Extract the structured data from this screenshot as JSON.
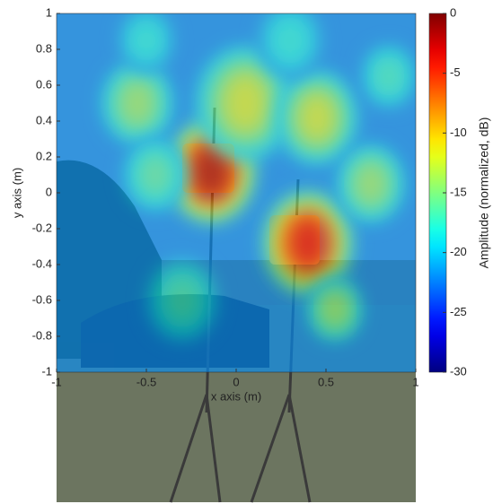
{
  "chart_data": {
    "type": "heatmap",
    "x_label": "x axis (m)",
    "y_label": "y axis (m)",
    "colorbar_label": "Amplitude (normalized, dB)",
    "colormap": "jet",
    "xlim": [
      -1,
      1
    ],
    "ylim": [
      -1,
      1
    ],
    "xticks": [
      -1,
      -0.5,
      0,
      0.5,
      1
    ],
    "yticks": [
      1,
      0.8,
      0.6,
      0.4,
      0.2,
      0,
      -0.2,
      -0.4,
      -0.6,
      -0.8,
      -1
    ],
    "clim": [
      -30,
      0
    ],
    "cticks": [
      0,
      -5,
      -10,
      -15,
      -20,
      -25,
      -30
    ],
    "background_amplitude": -22,
    "hotspots": [
      {
        "x": -0.14,
        "y": 0.12,
        "amplitude": -1,
        "radius": 0.2
      },
      {
        "x": 0.4,
        "y": -0.28,
        "amplitude": -3,
        "radius": 0.2
      },
      {
        "x": 0.05,
        "y": 0.5,
        "amplitude": -12,
        "radius": 0.22
      },
      {
        "x": 0.45,
        "y": 0.42,
        "amplitude": -12,
        "radius": 0.18
      },
      {
        "x": -0.55,
        "y": 0.5,
        "amplitude": -14,
        "radius": 0.16
      },
      {
        "x": -0.45,
        "y": 0.1,
        "amplitude": -16,
        "radius": 0.14
      },
      {
        "x": 0.75,
        "y": 0.05,
        "amplitude": -14,
        "radius": 0.15
      },
      {
        "x": 0.55,
        "y": -0.65,
        "amplitude": -14,
        "radius": 0.12
      },
      {
        "x": -0.3,
        "y": -0.6,
        "amplitude": -17,
        "radius": 0.16
      },
      {
        "x": -0.5,
        "y": 0.85,
        "amplitude": -18,
        "radius": 0.12
      },
      {
        "x": 0.3,
        "y": 0.85,
        "amplitude": -18,
        "radius": 0.14
      },
      {
        "x": 0.85,
        "y": 0.65,
        "amplitude": -17,
        "radius": 0.12
      }
    ]
  }
}
